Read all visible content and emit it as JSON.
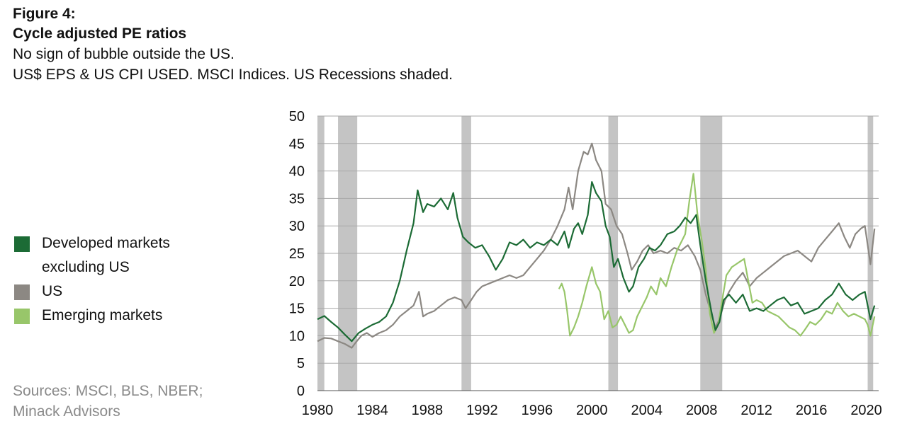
{
  "header": {
    "figure_number": "Figure 4:",
    "title": "Cycle adjusted PE ratios",
    "subtitle_1": "No sign of bubble outside the US.",
    "subtitle_2": "US$ EPS & US CPI USED. MSCI Indices. US Recessions shaded."
  },
  "legend": {
    "developed": "Developed markets excluding US",
    "us": "US",
    "emerging": "Emerging markets"
  },
  "sources": {
    "line_1": "Sources: MSCI, BLS, NBER;",
    "line_2": "Minack Advisors"
  },
  "colors": {
    "developed": "#1c6b35",
    "us": "#8c8883",
    "emerging": "#98c66a",
    "recession": "#c4c4c4",
    "grid": "#a8a8a8"
  },
  "chart_data": {
    "type": "line",
    "xlim": [
      1980,
      2020.9
    ],
    "ylim": [
      0,
      50
    ],
    "y_ticks": [
      0,
      5,
      10,
      15,
      20,
      25,
      30,
      35,
      40,
      45,
      50
    ],
    "x_ticks": [
      1980,
      1984,
      1988,
      1992,
      1996,
      2000,
      2004,
      2008,
      2012,
      2016,
      2020
    ],
    "grid": "horizontal",
    "legend_position": "left",
    "recessions": [
      [
        1980.0,
        1980.5
      ],
      [
        1981.5,
        1982.9
      ],
      [
        1990.5,
        1991.2
      ],
      [
        2001.2,
        2001.9
      ],
      [
        2007.9,
        2009.5
      ],
      [
        2020.1,
        2020.5
      ]
    ],
    "series": [
      {
        "name": "Developed markets excluding US",
        "color_key": "developed",
        "points": [
          [
            1980.0,
            13.0
          ],
          [
            1980.5,
            13.6
          ],
          [
            1981.0,
            12.5
          ],
          [
            1981.5,
            11.5
          ],
          [
            1982.0,
            10.2
          ],
          [
            1982.5,
            9.0
          ],
          [
            1983.0,
            10.5
          ],
          [
            1983.5,
            11.3
          ],
          [
            1984.0,
            12.0
          ],
          [
            1984.5,
            12.5
          ],
          [
            1985.0,
            13.5
          ],
          [
            1985.5,
            16.0
          ],
          [
            1986.0,
            20.0
          ],
          [
            1986.5,
            25.5
          ],
          [
            1987.0,
            30.5
          ],
          [
            1987.3,
            36.5
          ],
          [
            1987.7,
            32.5
          ],
          [
            1988.0,
            34.0
          ],
          [
            1988.5,
            33.5
          ],
          [
            1989.0,
            35.0
          ],
          [
            1989.5,
            33.0
          ],
          [
            1989.9,
            36.0
          ],
          [
            1990.2,
            31.5
          ],
          [
            1990.6,
            28.0
          ],
          [
            1991.0,
            27.0
          ],
          [
            1991.5,
            26.0
          ],
          [
            1992.0,
            26.5
          ],
          [
            1992.5,
            24.5
          ],
          [
            1993.0,
            22.0
          ],
          [
            1993.5,
            24.0
          ],
          [
            1994.0,
            27.0
          ],
          [
            1994.5,
            26.5
          ],
          [
            1995.0,
            27.5
          ],
          [
            1995.5,
            26.0
          ],
          [
            1996.0,
            27.0
          ],
          [
            1996.5,
            26.5
          ],
          [
            1997.0,
            27.5
          ],
          [
            1997.5,
            26.5
          ],
          [
            1998.0,
            29.0
          ],
          [
            1998.3,
            26.0
          ],
          [
            1998.7,
            29.5
          ],
          [
            1999.0,
            30.5
          ],
          [
            1999.3,
            28.5
          ],
          [
            1999.7,
            32.0
          ],
          [
            2000.0,
            38.0
          ],
          [
            2000.3,
            36.0
          ],
          [
            2000.7,
            34.5
          ],
          [
            2001.0,
            30.0
          ],
          [
            2001.3,
            28.0
          ],
          [
            2001.6,
            22.5
          ],
          [
            2001.9,
            24.0
          ],
          [
            2002.3,
            20.5
          ],
          [
            2002.7,
            18.0
          ],
          [
            2003.0,
            19.0
          ],
          [
            2003.4,
            22.5
          ],
          [
            2003.8,
            24.0
          ],
          [
            2004.2,
            26.0
          ],
          [
            2004.6,
            25.5
          ],
          [
            2005.0,
            26.5
          ],
          [
            2005.5,
            28.5
          ],
          [
            2006.0,
            29.0
          ],
          [
            2006.4,
            30.0
          ],
          [
            2006.8,
            31.5
          ],
          [
            2007.2,
            30.5
          ],
          [
            2007.6,
            32.0
          ],
          [
            2007.9,
            26.5
          ],
          [
            2008.3,
            20.0
          ],
          [
            2008.7,
            14.5
          ],
          [
            2009.0,
            11.0
          ],
          [
            2009.3,
            12.5
          ],
          [
            2009.6,
            16.5
          ],
          [
            2010.0,
            17.5
          ],
          [
            2010.5,
            16.0
          ],
          [
            2011.0,
            17.5
          ],
          [
            2011.5,
            14.5
          ],
          [
            2012.0,
            15.0
          ],
          [
            2012.5,
            14.5
          ],
          [
            2013.0,
            15.5
          ],
          [
            2013.5,
            16.5
          ],
          [
            2014.0,
            17.0
          ],
          [
            2014.5,
            15.5
          ],
          [
            2015.0,
            16.0
          ],
          [
            2015.5,
            14.0
          ],
          [
            2016.0,
            14.5
          ],
          [
            2016.5,
            15.0
          ],
          [
            2017.0,
            16.5
          ],
          [
            2017.5,
            17.5
          ],
          [
            2018.0,
            19.5
          ],
          [
            2018.5,
            17.5
          ],
          [
            2019.0,
            16.5
          ],
          [
            2019.5,
            17.5
          ],
          [
            2019.9,
            18.0
          ],
          [
            2020.1,
            15.5
          ],
          [
            2020.3,
            13.0
          ],
          [
            2020.6,
            15.5
          ]
        ]
      },
      {
        "name": "US",
        "color_key": "us",
        "points": [
          [
            1980.0,
            9.0
          ],
          [
            1980.5,
            9.6
          ],
          [
            1981.0,
            9.5
          ],
          [
            1981.5,
            9.0
          ],
          [
            1982.0,
            8.5
          ],
          [
            1982.5,
            7.8
          ],
          [
            1982.8,
            8.8
          ],
          [
            1983.2,
            10.0
          ],
          [
            1983.6,
            10.5
          ],
          [
            1984.0,
            9.8
          ],
          [
            1984.5,
            10.5
          ],
          [
            1985.0,
            11.0
          ],
          [
            1985.5,
            12.0
          ],
          [
            1986.0,
            13.5
          ],
          [
            1986.5,
            14.5
          ],
          [
            1987.0,
            15.5
          ],
          [
            1987.4,
            18.0
          ],
          [
            1987.7,
            13.5
          ],
          [
            1988.0,
            14.0
          ],
          [
            1988.5,
            14.5
          ],
          [
            1989.0,
            15.5
          ],
          [
            1989.5,
            16.5
          ],
          [
            1990.0,
            17.0
          ],
          [
            1990.5,
            16.5
          ],
          [
            1990.8,
            15.0
          ],
          [
            1991.2,
            16.5
          ],
          [
            1991.6,
            18.0
          ],
          [
            1992.0,
            19.0
          ],
          [
            1992.5,
            19.5
          ],
          [
            1993.0,
            20.0
          ],
          [
            1993.5,
            20.5
          ],
          [
            1994.0,
            21.0
          ],
          [
            1994.5,
            20.5
          ],
          [
            1995.0,
            21.0
          ],
          [
            1995.5,
            22.5
          ],
          [
            1996.0,
            24.0
          ],
          [
            1996.5,
            25.5
          ],
          [
            1997.0,
            27.5
          ],
          [
            1997.5,
            30.0
          ],
          [
            1998.0,
            33.0
          ],
          [
            1998.3,
            37.0
          ],
          [
            1998.6,
            33.0
          ],
          [
            1999.0,
            40.0
          ],
          [
            1999.4,
            43.5
          ],
          [
            1999.7,
            43.0
          ],
          [
            2000.0,
            45.0
          ],
          [
            2000.3,
            42.0
          ],
          [
            2000.7,
            40.0
          ],
          [
            2001.0,
            34.0
          ],
          [
            2001.4,
            33.0
          ],
          [
            2001.8,
            30.0
          ],
          [
            2002.2,
            28.5
          ],
          [
            2002.6,
            25.0
          ],
          [
            2002.9,
            22.0
          ],
          [
            2003.3,
            23.5
          ],
          [
            2003.7,
            25.5
          ],
          [
            2004.1,
            26.5
          ],
          [
            2004.5,
            25.0
          ],
          [
            2005.0,
            25.5
          ],
          [
            2005.5,
            25.0
          ],
          [
            2006.0,
            26.0
          ],
          [
            2006.5,
            25.5
          ],
          [
            2007.0,
            26.5
          ],
          [
            2007.5,
            24.5
          ],
          [
            2007.9,
            22.0
          ],
          [
            2008.3,
            17.5
          ],
          [
            2008.7,
            14.0
          ],
          [
            2009.0,
            11.5
          ],
          [
            2009.3,
            13.0
          ],
          [
            2009.7,
            16.5
          ],
          [
            2010.0,
            18.0
          ],
          [
            2010.5,
            20.0
          ],
          [
            2011.0,
            21.5
          ],
          [
            2011.5,
            19.0
          ],
          [
            2012.0,
            20.5
          ],
          [
            2012.5,
            21.5
          ],
          [
            2013.0,
            22.5
          ],
          [
            2013.5,
            23.5
          ],
          [
            2014.0,
            24.5
          ],
          [
            2014.5,
            25.0
          ],
          [
            2015.0,
            25.5
          ],
          [
            2015.5,
            24.5
          ],
          [
            2016.0,
            23.5
          ],
          [
            2016.5,
            26.0
          ],
          [
            2017.0,
            27.5
          ],
          [
            2017.5,
            29.0
          ],
          [
            2018.0,
            30.5
          ],
          [
            2018.4,
            28.0
          ],
          [
            2018.8,
            26.0
          ],
          [
            2019.2,
            28.5
          ],
          [
            2019.6,
            29.5
          ],
          [
            2019.9,
            30.0
          ],
          [
            2020.1,
            26.5
          ],
          [
            2020.3,
            23.0
          ],
          [
            2020.6,
            29.5
          ]
        ]
      },
      {
        "name": "Emerging markets",
        "color_key": "emerging",
        "points": [
          [
            1997.6,
            18.5
          ],
          [
            1997.8,
            19.5
          ],
          [
            1998.0,
            18.0
          ],
          [
            1998.2,
            14.5
          ],
          [
            1998.4,
            10.0
          ],
          [
            1998.7,
            11.5
          ],
          [
            1999.0,
            13.5
          ],
          [
            1999.3,
            16.0
          ],
          [
            1999.6,
            19.0
          ],
          [
            2000.0,
            22.5
          ],
          [
            2000.3,
            19.5
          ],
          [
            2000.6,
            18.0
          ],
          [
            2000.9,
            13.0
          ],
          [
            2001.2,
            14.5
          ],
          [
            2001.5,
            11.5
          ],
          [
            2001.8,
            12.0
          ],
          [
            2002.1,
            13.5
          ],
          [
            2002.4,
            12.0
          ],
          [
            2002.7,
            10.5
          ],
          [
            2003.0,
            11.0
          ],
          [
            2003.3,
            13.5
          ],
          [
            2003.7,
            15.5
          ],
          [
            2004.0,
            17.0
          ],
          [
            2004.3,
            19.0
          ],
          [
            2004.7,
            17.5
          ],
          [
            2005.0,
            20.5
          ],
          [
            2005.4,
            19.0
          ],
          [
            2005.8,
            22.5
          ],
          [
            2006.2,
            25.5
          ],
          [
            2006.5,
            27.0
          ],
          [
            2006.8,
            28.5
          ],
          [
            2007.1,
            34.5
          ],
          [
            2007.4,
            39.5
          ],
          [
            2007.7,
            32.0
          ],
          [
            2008.0,
            27.5
          ],
          [
            2008.3,
            22.0
          ],
          [
            2008.6,
            14.0
          ],
          [
            2008.9,
            10.5
          ],
          [
            2009.2,
            12.0
          ],
          [
            2009.5,
            16.5
          ],
          [
            2009.8,
            21.0
          ],
          [
            2010.2,
            22.5
          ],
          [
            2010.5,
            23.0
          ],
          [
            2010.8,
            23.5
          ],
          [
            2011.1,
            24.0
          ],
          [
            2011.4,
            20.0
          ],
          [
            2011.7,
            16.0
          ],
          [
            2012.0,
            16.5
          ],
          [
            2012.4,
            16.0
          ],
          [
            2012.8,
            14.5
          ],
          [
            2013.2,
            14.0
          ],
          [
            2013.6,
            13.5
          ],
          [
            2014.0,
            12.5
          ],
          [
            2014.4,
            11.5
          ],
          [
            2014.8,
            11.0
          ],
          [
            2015.2,
            10.0
          ],
          [
            2015.5,
            11.0
          ],
          [
            2015.9,
            12.5
          ],
          [
            2016.3,
            12.0
          ],
          [
            2016.7,
            13.0
          ],
          [
            2017.1,
            14.5
          ],
          [
            2017.5,
            14.0
          ],
          [
            2017.9,
            16.0
          ],
          [
            2018.3,
            14.5
          ],
          [
            2018.7,
            13.5
          ],
          [
            2019.1,
            14.0
          ],
          [
            2019.5,
            13.5
          ],
          [
            2019.9,
            13.0
          ],
          [
            2020.1,
            12.0
          ],
          [
            2020.3,
            10.0
          ],
          [
            2020.6,
            13.5
          ]
        ]
      }
    ]
  }
}
